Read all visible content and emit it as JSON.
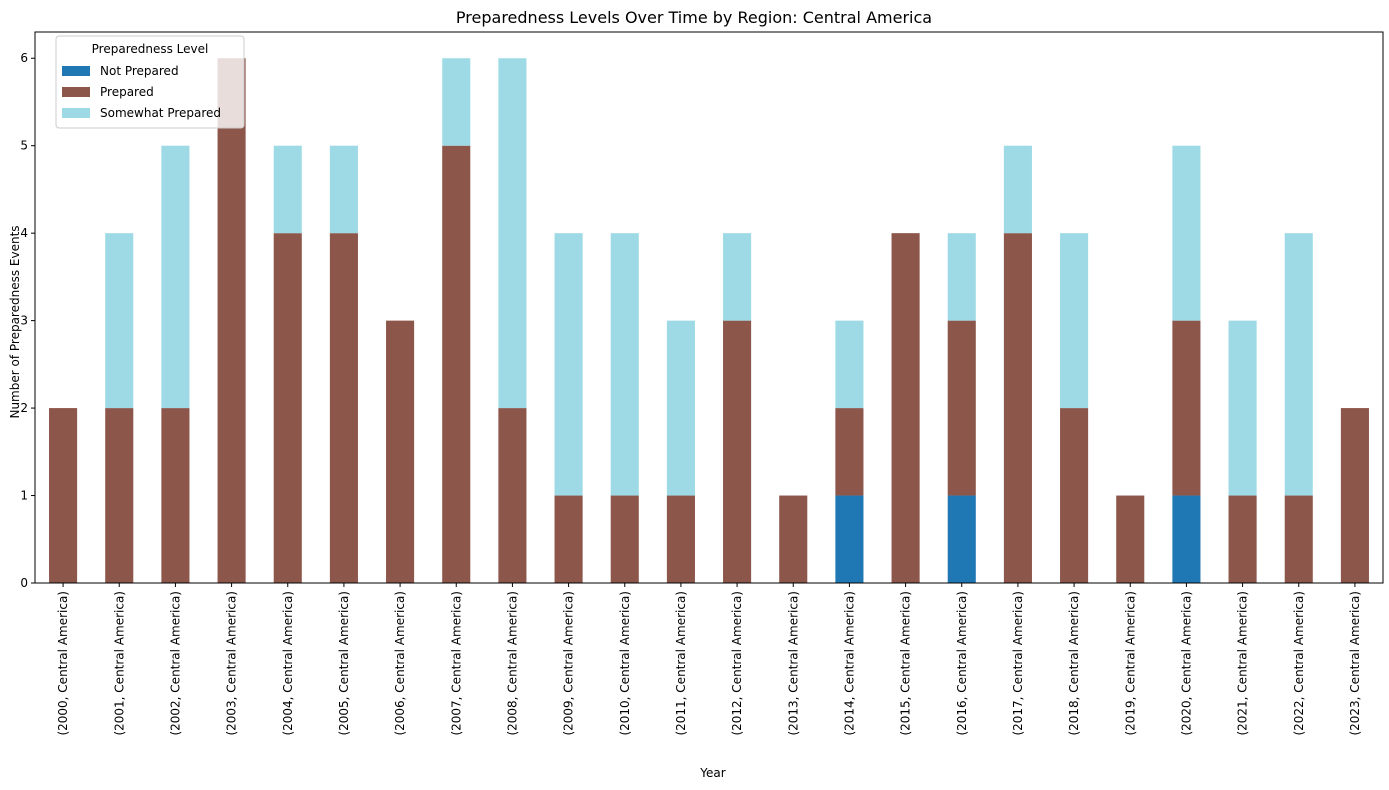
{
  "chart_data": {
    "type": "bar",
    "stacked": true,
    "title": "Preparedness Levels Over Time by Region: Central America",
    "xlabel": "Year",
    "ylabel": "Number of Preparedness Events",
    "ylim": [
      0,
      6.3
    ],
    "yticks": [
      0,
      1,
      2,
      3,
      4,
      5,
      6
    ],
    "grid": false,
    "legend": {
      "title": "Preparedness Level",
      "placement": "top-left"
    },
    "categories": [
      "(2000, Central America)",
      "(2001, Central America)",
      "(2002, Central America)",
      "(2003, Central America)",
      "(2004, Central America)",
      "(2005, Central America)",
      "(2006, Central America)",
      "(2007, Central America)",
      "(2008, Central America)",
      "(2009, Central America)",
      "(2010, Central America)",
      "(2011, Central America)",
      "(2012, Central America)",
      "(2013, Central America)",
      "(2014, Central America)",
      "(2015, Central America)",
      "(2016, Central America)",
      "(2017, Central America)",
      "(2018, Central America)",
      "(2019, Central America)",
      "(2020, Central America)",
      "(2021, Central America)",
      "(2022, Central America)",
      "(2023, Central America)"
    ],
    "series": [
      {
        "name": "Not Prepared",
        "color": "#1f77b4",
        "values": [
          0,
          0,
          0,
          0,
          0,
          0,
          0,
          0,
          0,
          0,
          0,
          0,
          0,
          0,
          1,
          0,
          1,
          0,
          0,
          0,
          1,
          0,
          0,
          0
        ]
      },
      {
        "name": "Prepared",
        "color": "#8c564b",
        "values": [
          2,
          2,
          2,
          6,
          4,
          4,
          3,
          5,
          2,
          1,
          1,
          1,
          3,
          1,
          1,
          4,
          2,
          4,
          2,
          1,
          2,
          1,
          1,
          2
        ]
      },
      {
        "name": "Somewhat Prepared",
        "color": "#9edae5",
        "values": [
          0,
          2,
          3,
          0,
          1,
          1,
          0,
          1,
          4,
          3,
          3,
          2,
          1,
          0,
          1,
          0,
          1,
          1,
          2,
          0,
          2,
          2,
          3,
          0
        ]
      }
    ]
  }
}
